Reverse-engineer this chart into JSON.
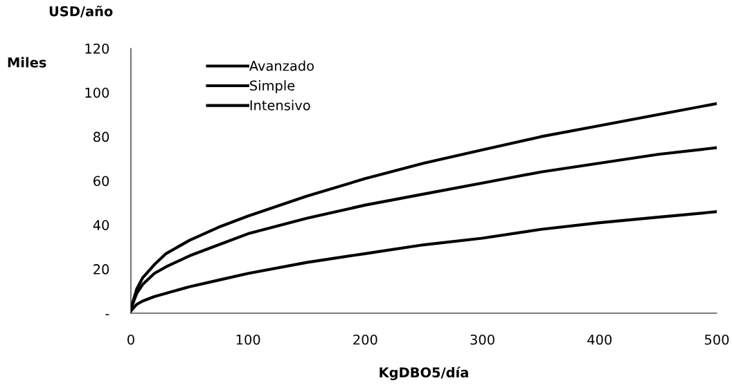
{
  "chart_data": {
    "type": "line",
    "ylabel": "USD/año",
    "xlabel": "KgDBO5/día",
    "annotations": [
      "Miles"
    ],
    "x": [
      0,
      5,
      10,
      20,
      30,
      50,
      75,
      100,
      150,
      200,
      250,
      300,
      350,
      400,
      450,
      500
    ],
    "series": [
      {
        "name": "Avanzado",
        "color": "#000000",
        "values": [
          2,
          11,
          16,
          22,
          27,
          33,
          39,
          44,
          53,
          61,
          68,
          74,
          80,
          85,
          90,
          95
        ]
      },
      {
        "name": "Simple",
        "color": "#000000",
        "values": [
          2,
          9,
          13,
          18,
          21,
          26,
          31,
          36,
          43,
          49,
          54,
          59,
          64,
          68,
          72,
          75
        ]
      },
      {
        "name": "Intensivo",
        "color": "#000000",
        "values": [
          1,
          4,
          5.5,
          7.5,
          9,
          12,
          15,
          18,
          23,
          27,
          31,
          34,
          38,
          41,
          43.5,
          46
        ]
      }
    ],
    "xlim": [
      0,
      500
    ],
    "xticks": [
      0,
      100,
      200,
      300,
      400,
      500
    ],
    "ylim": [
      0,
      120
    ],
    "yticks": [
      {
        "value": 0,
        "label": "-"
      },
      20,
      40,
      60,
      80,
      100,
      120
    ],
    "grid": false,
    "legend": "top left",
    "marker": "none",
    "line_style": "solid"
  }
}
